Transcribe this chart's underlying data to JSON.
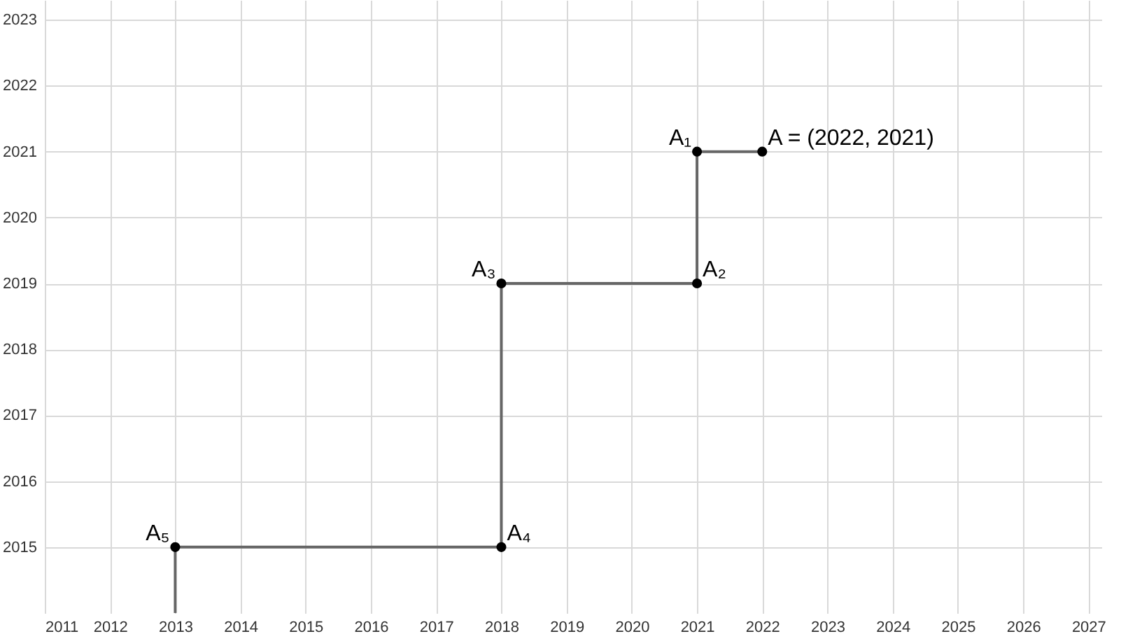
{
  "chart_data": {
    "type": "line",
    "xlim": [
      2011,
      2027.2
    ],
    "ylim": [
      2014,
      2023.3
    ],
    "xticks": [
      2011,
      2012,
      2013,
      2014,
      2015,
      2016,
      2017,
      2018,
      2019,
      2020,
      2021,
      2022,
      2023,
      2024,
      2025,
      2026,
      2027
    ],
    "yticks": [
      2015,
      2016,
      2017,
      2018,
      2019,
      2020,
      2021,
      2022,
      2023
    ],
    "grid": true,
    "series": [
      {
        "color": "#666666",
        "marker": "none",
        "x": [
          2022,
          2021,
          2021,
          2018,
          2018,
          2013,
          2013
        ],
        "values": [
          2021,
          2021,
          2019,
          2019,
          2015,
          2015,
          2014
        ]
      },
      {
        "type": "scatter",
        "color": "#000000",
        "marker": "circle",
        "x": [
          2022,
          2021,
          2021,
          2018,
          2018,
          2013
        ],
        "values": [
          2021,
          2021,
          2019,
          2019,
          2015,
          2015
        ]
      }
    ],
    "annotations": [
      {
        "text": "A = (2022, 2021)",
        "x": 2022,
        "y": 2021
      },
      {
        "text": "A₁",
        "x": 2021,
        "y": 2021
      },
      {
        "text": "A₂",
        "x": 2021,
        "y": 2019
      },
      {
        "text": "A₃",
        "x": 2018,
        "y": 2019
      },
      {
        "text": "A₄",
        "x": 2018,
        "y": 2015
      },
      {
        "text": "A₅",
        "x": 2013,
        "y": 2015
      }
    ]
  }
}
